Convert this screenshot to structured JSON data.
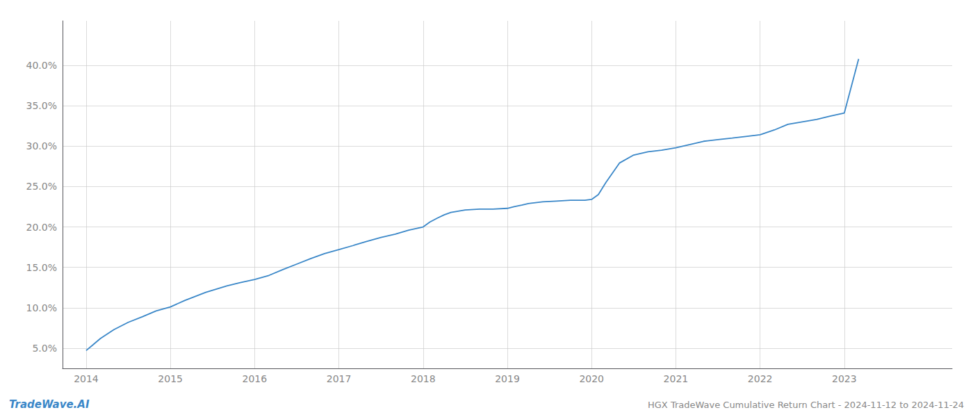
{
  "chart_data": {
    "type": "line",
    "title": "HGX TradeWave Cumulative Return Chart - 2024-11-12 to 2024-11-24",
    "annotations": [
      "TradeWave.AI"
    ],
    "color": "#3a87c8",
    "x": [
      2014.0,
      2014.08,
      2014.17,
      2014.33,
      2014.5,
      2014.67,
      2014.83,
      2015.0,
      2015.17,
      2015.42,
      2015.67,
      2015.83,
      2016.0,
      2016.17,
      2016.33,
      2016.5,
      2016.67,
      2016.83,
      2017.0,
      2017.17,
      2017.33,
      2017.5,
      2017.67,
      2017.83,
      2018.0,
      2018.08,
      2018.17,
      2018.25,
      2018.33,
      2018.5,
      2018.67,
      2018.83,
      2019.0,
      2019.08,
      2019.17,
      2019.25,
      2019.42,
      2019.58,
      2019.75,
      2019.92,
      2020.0,
      2020.08,
      2020.17,
      2020.33,
      2020.5,
      2020.67,
      2020.83,
      2021.0,
      2021.17,
      2021.33,
      2021.5,
      2021.67,
      2021.83,
      2022.0,
      2022.17,
      2022.33,
      2022.5,
      2022.67,
      2022.83,
      2023.0,
      2023.17
    ],
    "values": [
      0.047,
      0.054,
      0.062,
      0.073,
      0.082,
      0.089,
      0.096,
      0.101,
      0.109,
      0.119,
      0.127,
      0.131,
      0.135,
      0.14,
      0.147,
      0.154,
      0.161,
      0.167,
      0.172,
      0.177,
      0.182,
      0.187,
      0.191,
      0.196,
      0.2,
      0.206,
      0.211,
      0.215,
      0.218,
      0.221,
      0.222,
      0.222,
      0.223,
      0.225,
      0.227,
      0.229,
      0.231,
      0.232,
      0.233,
      0.233,
      0.234,
      0.24,
      0.255,
      0.279,
      0.289,
      0.293,
      0.295,
      0.298,
      0.302,
      0.306,
      0.308,
      0.31,
      0.312,
      0.314,
      0.32,
      0.327,
      0.33,
      0.333,
      0.337,
      0.341,
      0.408
    ],
    "xlim": [
      2013.72,
      2024.28
    ],
    "xticks": [
      2014,
      2015,
      2016,
      2017,
      2018,
      2019,
      2020,
      2021,
      2022,
      2023
    ],
    "ylim": [
      0.025,
      0.455
    ],
    "yticks": [
      {
        "value": 0.05,
        "label": "5.0%"
      },
      {
        "value": 0.1,
        "label": "10.0%"
      },
      {
        "value": 0.15,
        "label": "15.0%"
      },
      {
        "value": 0.2,
        "label": "20.0%"
      },
      {
        "value": 0.25,
        "label": "25.0%"
      },
      {
        "value": 0.3,
        "label": "30.0%"
      },
      {
        "value": 0.35,
        "label": "35.0%"
      },
      {
        "value": 0.4,
        "label": "40.0%"
      }
    ],
    "grid": true
  }
}
